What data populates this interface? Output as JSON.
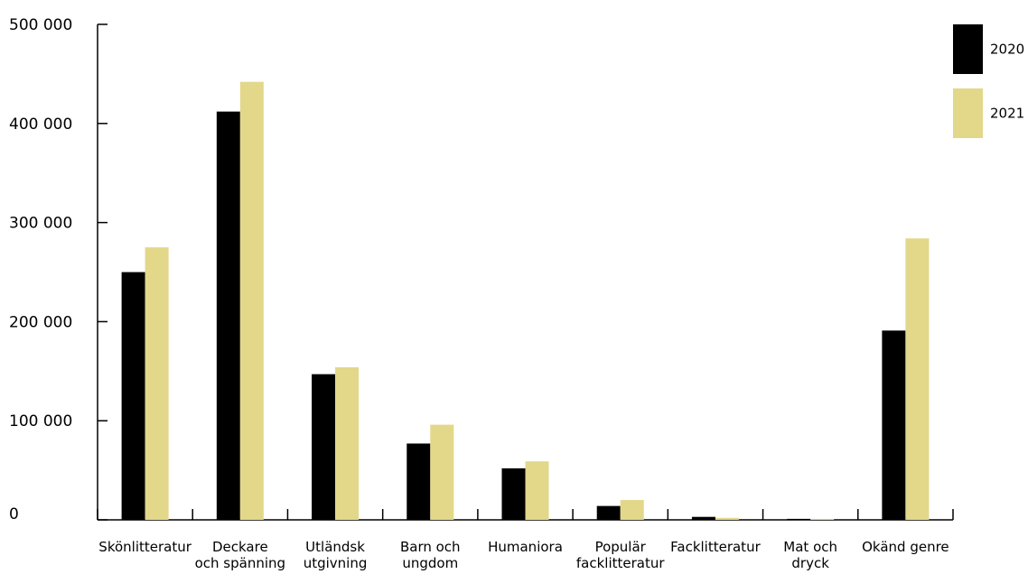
{
  "chart_data": {
    "type": "bar",
    "categories": [
      [
        "Skönlitteratur"
      ],
      [
        "Deckare",
        "och spänning"
      ],
      [
        "Utländsk",
        "utgivning"
      ],
      [
        "Barn och",
        "ungdom"
      ],
      [
        "Humaniora"
      ],
      [
        "Populär",
        "facklitteratur"
      ],
      [
        "Facklitteratur"
      ],
      [
        "Mat och",
        "dryck"
      ],
      [
        "Okänd genre"
      ]
    ],
    "series": [
      {
        "name": "2020",
        "color": "#000000",
        "values": [
          250000,
          412000,
          147000,
          77000,
          52000,
          14000,
          3000,
          1000,
          191000
        ]
      },
      {
        "name": "2021",
        "color": "#e3d78a",
        "values": [
          275000,
          442000,
          154000,
          96000,
          59000,
          20000,
          2000,
          1000,
          284000
        ]
      }
    ],
    "ylim": [
      0,
      500000
    ],
    "yticks": [
      {
        "value": 0,
        "label": "0"
      },
      {
        "value": 100000,
        "label": "100 000"
      },
      {
        "value": 200000,
        "label": "200 000"
      },
      {
        "value": 300000,
        "label": "300 000"
      },
      {
        "value": 400000,
        "label": "400 000"
      },
      {
        "value": 500000,
        "label": "500 000"
      }
    ],
    "title": "",
    "xlabel": "",
    "ylabel": "",
    "grid": false,
    "legend": "top-right"
  }
}
